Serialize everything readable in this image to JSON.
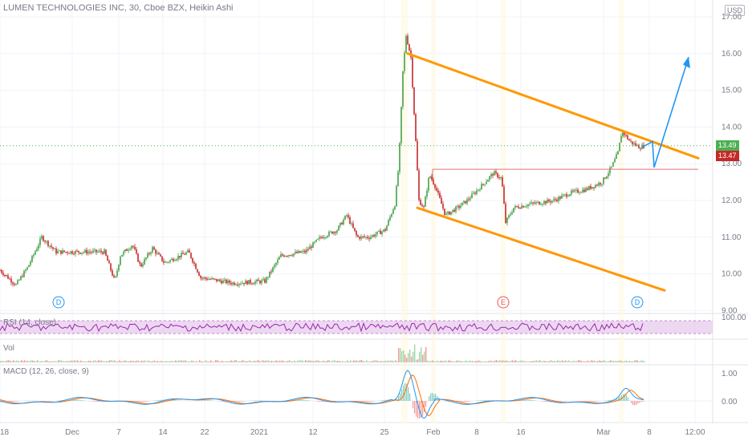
{
  "header": {
    "title": "LUMEN TECHNOLOGIES INC, 30, Cboe BZX, Heikin Ashi",
    "currency": "USD"
  },
  "price_labels": {
    "current": "13.49",
    "previous": "13.47"
  },
  "colors": {
    "up": "#26a69a",
    "down": "#ef5350",
    "bull_candle": "#43a047",
    "bear_candle": "#c62828",
    "trendline": "#ff9800",
    "support": "#e57373",
    "projection": "#2196f3",
    "rsi": "#9c27b0",
    "rsi_band": "#e1bee7",
    "macd": "#2196f3",
    "signal": "#ff6d00",
    "price_green": "#4caf50",
    "price_red": "#c62828"
  },
  "panes": {
    "rsi": {
      "title": "RSI (14, close)",
      "axis_label": "100.00"
    },
    "volume": {
      "title": "Vol"
    },
    "macd": {
      "title": "MACD (12, 26, close, 9)",
      "axis_labels": [
        "1.00",
        "0.00"
      ]
    }
  },
  "events": [
    {
      "letter": "D",
      "color": "#2196f3",
      "x_label": "Dec"
    },
    {
      "letter": "E",
      "color": "#ef5350",
      "x_label": "8"
    },
    {
      "letter": "D",
      "color": "#2196f3",
      "x_label": "Mar"
    }
  ],
  "chart_data": {
    "type": "line",
    "title": "LUMEN TECHNOLOGIES INC, 30, Cboe BZX, Heikin Ashi",
    "xlabel": "",
    "ylabel": "",
    "x_ticks": [
      "18",
      "Dec",
      "7",
      "14",
      "22",
      "2021",
      "12",
      "25",
      "Feb",
      "8",
      "16",
      "Mar",
      "8",
      "12:00"
    ],
    "y_ticks": [
      "9.00",
      "10.00",
      "11.00",
      "12.00",
      "13.00",
      "14.00",
      "15.00",
      "16.00",
      "17.00"
    ],
    "ylim": [
      9.0,
      17.2
    ],
    "grid": true,
    "series": [
      {
        "name": "",
        "x": [
          "18",
          "Dec",
          "7",
          "14",
          "22",
          "2021",
          "12",
          "25",
          "Feb",
          "8",
          "16",
          "Mar",
          "8"
        ],
        "values": [
          10.0,
          10.7,
          10.3,
          10.6,
          9.9,
          9.8,
          10.5,
          11.1,
          12.5,
          12.6,
          11.9,
          12.8,
          13.49
        ]
      }
    ],
    "annotations": {
      "upper_trendline": [
        [
          16.0,
          "Jan 27"
        ],
        [
          13.2,
          "Mar 12"
        ]
      ],
      "lower_trendline": [
        [
          11.8,
          "Jan 28"
        ],
        [
          9.5,
          "Mar 12"
        ]
      ],
      "support_level": 12.85,
      "projection_path": [
        13.49,
        12.9,
        15.9
      ]
    }
  }
}
